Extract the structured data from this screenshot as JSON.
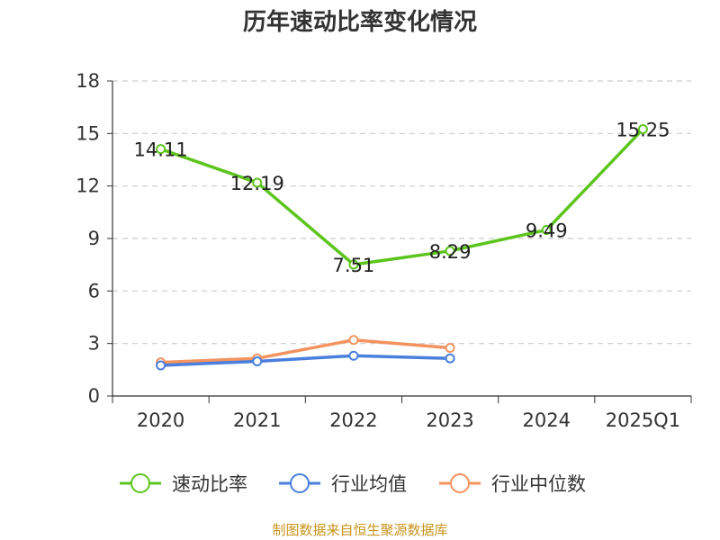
{
  "chart_data": {
    "type": "line",
    "title": "历年速动比率变化情况",
    "categories": [
      "2020",
      "2021",
      "2022",
      "2023",
      "2024",
      "2025Q1"
    ],
    "series": [
      {
        "name": "速动比率",
        "color": "#5cc51d",
        "values": [
          14.11,
          12.19,
          7.51,
          8.29,
          9.49,
          15.25
        ],
        "show_labels": true
      },
      {
        "name": "行业均值",
        "color": "#4a7fdd",
        "values": [
          1.75,
          1.98,
          2.3,
          2.15,
          null,
          null
        ],
        "show_labels": false
      },
      {
        "name": "行业中位数",
        "color": "#f3935f",
        "values": [
          1.92,
          2.15,
          3.2,
          2.75,
          null,
          null
        ],
        "show_labels": false
      }
    ],
    "yticks": [
      0,
      3,
      6,
      9,
      12,
      15,
      18
    ],
    "ylim": [
      0,
      18
    ],
    "grid": true,
    "legend_position": "bottom"
  },
  "source": "制图数据来自恒生聚源数据库"
}
